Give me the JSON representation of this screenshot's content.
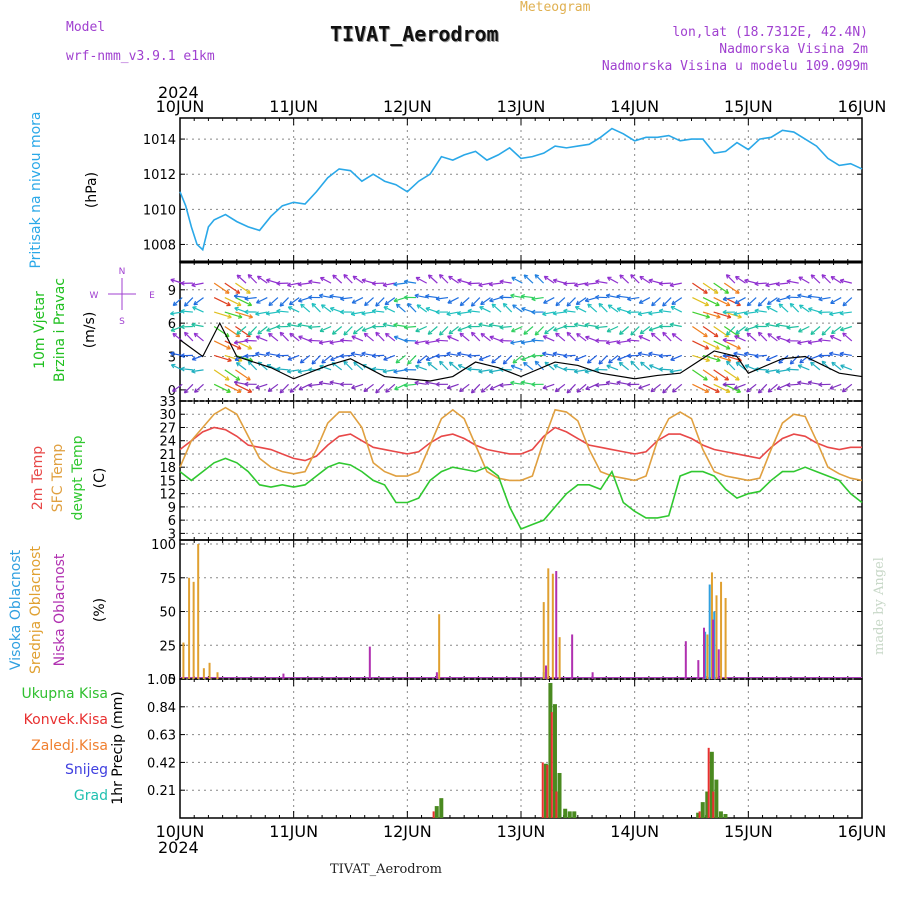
{
  "header": {
    "model_label": "Model",
    "model_name": "wrf-nmm_v3.9.1 e1km",
    "meteogram_label": "Meteogram",
    "station": "TIVAT_Aerodrom",
    "lonlat": "lon,lat (18.7312E, 42.4N)",
    "elevation": "Nadmorska Visina 2m",
    "model_elevation": "Nadmorska Visina u modelu 109.099m",
    "footer": "TIVAT_Aerodrom",
    "watermark": "made by Angel"
  },
  "time_axis": {
    "year_top": "2024",
    "year_bottom": "2024",
    "labels": [
      "10JUN",
      "11JUN",
      "12JUN",
      "13JUN",
      "14JUN",
      "15JUN",
      "16JUN"
    ]
  },
  "colors": {
    "pressure": "#2aa8e8",
    "temp2m": "#e84848",
    "sfc": "#e0a040",
    "dew": "#30c830",
    "high_cloud": "#30a0e0",
    "mid_cloud": "#e0a030",
    "low_cloud": "#b030b0",
    "total_precip": "#4a8a20",
    "conv_precip": "#e83030"
  },
  "chart_data": [
    {
      "type": "line",
      "id": "pressure",
      "ylabel_lines": [
        "Pritisak na nivou mora",
        "(hPa)"
      ],
      "y_ticks": [
        "1008",
        "1010",
        "1012",
        "1014"
      ],
      "ylim": [
        1007,
        1015.2
      ],
      "x_range_days": [
        0,
        6
      ],
      "series": [
        {
          "x": [
            0,
            0.05,
            0.1,
            0.15,
            0.2,
            0.25,
            0.3,
            0.4,
            0.5,
            0.6,
            0.7,
            0.8,
            0.9,
            1.0,
            1.1,
            1.2,
            1.3,
            1.4,
            1.5,
            1.6,
            1.7,
            1.8,
            1.9,
            2.0,
            2.1,
            2.2,
            2.3,
            2.4,
            2.5,
            2.6,
            2.7,
            2.8,
            2.9,
            3.0,
            3.1,
            3.2,
            3.3,
            3.4,
            3.5,
            3.6,
            3.7,
            3.8,
            3.9,
            4.0,
            4.1,
            4.2,
            4.3,
            4.4,
            4.5,
            4.6,
            4.7,
            4.8,
            4.9,
            5.0,
            5.1,
            5.2,
            5.3,
            5.4,
            5.5,
            5.6,
            5.7,
            5.8,
            5.9,
            6.0
          ],
          "values": [
            1011.0,
            1010.2,
            1009.0,
            1008.0,
            1007.7,
            1009.0,
            1009.4,
            1009.7,
            1009.3,
            1009.0,
            1008.8,
            1009.6,
            1010.2,
            1010.4,
            1010.3,
            1011.0,
            1011.8,
            1012.3,
            1012.2,
            1011.6,
            1012.0,
            1011.6,
            1011.4,
            1011.0,
            1011.6,
            1012.0,
            1013.0,
            1012.8,
            1013.1,
            1013.3,
            1012.8,
            1013.1,
            1013.5,
            1012.9,
            1013.0,
            1013.2,
            1013.6,
            1013.5,
            1013.6,
            1013.7,
            1014.1,
            1014.6,
            1014.3,
            1013.9,
            1014.1,
            1014.1,
            1014.2,
            1013.9,
            1014.0,
            1014.0,
            1013.2,
            1013.3,
            1013.8,
            1013.4,
            1014.0,
            1014.1,
            1014.5,
            1014.4,
            1014.0,
            1013.6,
            1012.9,
            1012.5,
            1012.6,
            1012.3
          ]
        }
      ]
    },
    {
      "type": "vector",
      "id": "wind",
      "ylabel_lines": [
        "10m Vjetar",
        "Brzina i Pravac",
        "(m/s)"
      ],
      "compass_labels": [
        "N",
        "W",
        "E",
        "S"
      ],
      "y_ticks": [
        "0",
        "3",
        "6",
        "9"
      ],
      "ylim": [
        -1,
        11.5
      ],
      "series": [
        {
          "x": [
            0,
            0.2,
            0.35,
            0.5,
            0.8,
            1.0,
            1.3,
            1.5,
            1.8,
            2.0,
            2.2,
            2.4,
            2.6,
            2.8,
            3.0,
            3.3,
            3.5,
            3.7,
            4.0,
            4.2,
            4.4,
            4.55,
            4.7,
            4.9,
            5.0,
            5.3,
            5.5,
            5.8,
            6.0
          ],
          "values": [
            4.5,
            3.0,
            6.0,
            3.0,
            2.0,
            1.0,
            2.2,
            2.8,
            1.2,
            1.0,
            0.8,
            1.2,
            2.5,
            2.0,
            1.2,
            2.5,
            2.2,
            1.5,
            1.0,
            1.3,
            1.5,
            2.5,
            3.5,
            3.0,
            1.5,
            2.8,
            3.0,
            1.5,
            1.2
          ]
        }
      ]
    },
    {
      "type": "line",
      "id": "temperature",
      "ylabel_lines": [
        "2m Temp",
        "SFC Temp",
        "dewpt Temp",
        "(C)"
      ],
      "y_ticks": [
        "3",
        "6",
        "9",
        "12",
        "15",
        "18",
        "21",
        "24",
        "27",
        "30",
        "33"
      ],
      "ylim": [
        1.5,
        33
      ],
      "series": [
        {
          "name": "2m Temp",
          "x": [
            0,
            0.1,
            0.2,
            0.3,
            0.4,
            0.5,
            0.6,
            0.7,
            0.8,
            0.9,
            1.0,
            1.1,
            1.2,
            1.3,
            1.4,
            1.5,
            1.6,
            1.7,
            1.8,
            1.9,
            2.0,
            2.1,
            2.2,
            2.3,
            2.4,
            2.5,
            2.6,
            2.7,
            2.8,
            2.9,
            3.0,
            3.1,
            3.2,
            3.3,
            3.4,
            3.5,
            3.6,
            3.7,
            3.8,
            3.9,
            4.0,
            4.1,
            4.2,
            4.3,
            4.4,
            4.5,
            4.6,
            4.7,
            4.8,
            4.9,
            5.0,
            5.1,
            5.2,
            5.3,
            5.4,
            5.5,
            5.6,
            5.7,
            5.8,
            5.9,
            6.0
          ],
          "values": [
            22,
            24,
            26,
            27,
            26.5,
            25,
            23,
            22.5,
            22,
            21,
            20,
            19.5,
            20.5,
            23,
            25,
            25.5,
            24,
            22.5,
            22,
            21.5,
            21,
            21.5,
            23.5,
            25,
            25.5,
            24.5,
            23,
            22,
            21.5,
            21,
            21,
            22,
            25,
            27,
            26,
            24.5,
            23,
            22.5,
            22,
            21.5,
            21,
            21.5,
            24,
            25.5,
            25.5,
            24.5,
            23,
            22,
            21.5,
            21,
            20.5,
            20,
            22.5,
            24.5,
            25.5,
            25,
            23.5,
            22.5,
            22,
            22.5,
            22.5
          ]
        },
        {
          "name": "SFC Temp",
          "x": [
            0,
            0.1,
            0.2,
            0.3,
            0.4,
            0.5,
            0.6,
            0.7,
            0.8,
            0.9,
            1.0,
            1.1,
            1.2,
            1.3,
            1.4,
            1.5,
            1.6,
            1.7,
            1.8,
            1.9,
            2.0,
            2.1,
            2.2,
            2.3,
            2.4,
            2.5,
            2.6,
            2.7,
            2.8,
            2.9,
            3.0,
            3.1,
            3.2,
            3.3,
            3.4,
            3.5,
            3.6,
            3.7,
            3.8,
            3.9,
            4.0,
            4.1,
            4.2,
            4.3,
            4.4,
            4.5,
            4.6,
            4.7,
            4.8,
            4.9,
            5.0,
            5.1,
            5.2,
            5.3,
            5.4,
            5.5,
            5.6,
            5.7,
            5.8,
            5.9,
            6.0
          ],
          "values": [
            18,
            24,
            27,
            30,
            31.5,
            30,
            25,
            20,
            18,
            17,
            16.5,
            17,
            22,
            28,
            30.5,
            30.5,
            27,
            19,
            17,
            16,
            16,
            17,
            23,
            29,
            31,
            29,
            23,
            17,
            15.5,
            15,
            15,
            16,
            24,
            31,
            30.5,
            28.5,
            22,
            17,
            16,
            15.5,
            15,
            16,
            24,
            29,
            30.5,
            29,
            22,
            17,
            16,
            15.5,
            15,
            15.5,
            22,
            28,
            30,
            29.5,
            24,
            18,
            16.5,
            15.5,
            15
          ]
        },
        {
          "name": "dewpt Temp",
          "x": [
            0,
            0.1,
            0.2,
            0.3,
            0.4,
            0.5,
            0.6,
            0.7,
            0.8,
            0.9,
            1.0,
            1.1,
            1.2,
            1.3,
            1.4,
            1.5,
            1.6,
            1.7,
            1.8,
            1.9,
            2.0,
            2.1,
            2.2,
            2.3,
            2.4,
            2.5,
            2.6,
            2.7,
            2.8,
            2.9,
            3.0,
            3.1,
            3.2,
            3.3,
            3.4,
            3.5,
            3.6,
            3.7,
            3.8,
            3.9,
            4.0,
            4.1,
            4.2,
            4.3,
            4.4,
            4.5,
            4.6,
            4.7,
            4.8,
            4.9,
            5.0,
            5.1,
            5.2,
            5.3,
            5.4,
            5.5,
            5.6,
            5.7,
            5.8,
            5.9,
            6.0
          ],
          "values": [
            17,
            15,
            17,
            19,
            20,
            19,
            17,
            14,
            13.5,
            14,
            13.5,
            14,
            16,
            18,
            19,
            18.5,
            17,
            15,
            14,
            10,
            10,
            11,
            15,
            17,
            18,
            17.5,
            17,
            18,
            16,
            9,
            4,
            5,
            6,
            9,
            12,
            14,
            14,
            13,
            17,
            10,
            8,
            6.5,
            6.5,
            7,
            16,
            17,
            17,
            16,
            13,
            11,
            12,
            12.5,
            15,
            17,
            17,
            18,
            17,
            16,
            15,
            12,
            10
          ]
        }
      ]
    },
    {
      "type": "bar",
      "id": "cloud",
      "ylabel_lines": [
        "Visoka Oblacnost",
        "Srednja Oblacnost",
        "Niska Oblacnost",
        "(%)"
      ],
      "y_ticks": [
        "0",
        "25",
        "50",
        "75",
        "100"
      ],
      "ylim": [
        0,
        103
      ],
      "series": [
        {
          "name": "Visoka Oblacnost",
          "x": [
            3.2,
            4.62,
            4.66,
            4.7
          ],
          "values": [
            5,
            35,
            70,
            50
          ]
        },
        {
          "name": "Srednja Oblacnost",
          "x": [
            0.03,
            0.08,
            0.12,
            0.16,
            0.21,
            0.26,
            0.33,
            2.28,
            3.2,
            3.24,
            3.28,
            3.34,
            4.64,
            4.68,
            4.72,
            4.76,
            4.8
          ],
          "values": [
            27,
            75,
            72,
            100,
            8,
            12,
            5,
            48,
            57,
            82,
            78,
            31,
            33,
            79,
            62,
            72,
            60
          ]
        },
        {
          "name": "Niska Oblacnost",
          "x": [
            0.91,
            1.67,
            2.26,
            3.22,
            3.31,
            3.45,
            3.63,
            4.45,
            4.56,
            4.61,
            4.69,
            4.74
          ],
          "values": [
            4,
            24,
            5,
            10,
            80,
            33,
            5,
            28,
            14,
            38,
            44,
            22
          ]
        }
      ]
    },
    {
      "type": "bar",
      "id": "precip",
      "ylabel_lines": [
        "1hr Precip (mm)"
      ],
      "legend": [
        "Ukupna Kisa",
        "Konvek.Kisa",
        "Zaledj.Kisa",
        "Snijeg",
        "Grad"
      ],
      "y_ticks": [
        "0.21",
        "0.42",
        "0.63",
        "0.84",
        "1.05"
      ],
      "ylim": [
        0,
        1.05
      ],
      "series": [
        {
          "name": "Ukupna Kisa",
          "x": [
            2.25,
            2.29,
            3.21,
            3.25,
            3.29,
            3.33,
            3.38,
            3.42,
            3.46,
            4.55,
            4.59,
            4.63,
            4.67,
            4.71,
            4.75,
            4.79
          ],
          "values": [
            0.09,
            0.15,
            0.41,
            1.02,
            0.86,
            0.34,
            0.07,
            0.05,
            0.05,
            0.04,
            0.12,
            0.2,
            0.5,
            0.29,
            0.05,
            0.03
          ]
        },
        {
          "name": "Konvek.Kisa",
          "x": [
            2.24,
            3.2,
            3.24,
            3.28,
            3.32,
            4.58,
            4.66,
            4.7
          ],
          "values": [
            0.05,
            0.42,
            0.4,
            0.8,
            0.2,
            0.05,
            0.53,
            0.2
          ]
        }
      ]
    }
  ]
}
